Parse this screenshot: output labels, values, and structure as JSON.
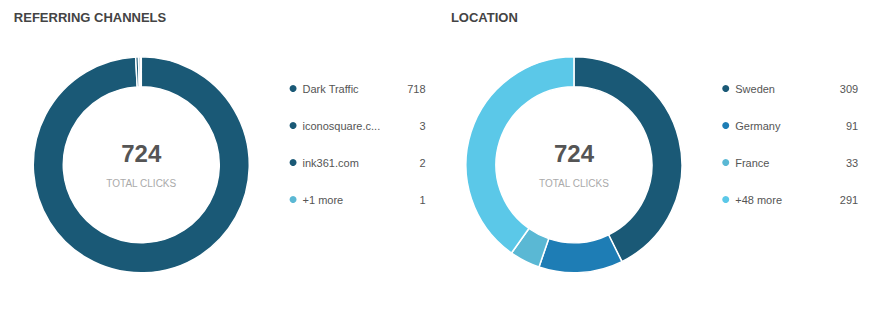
{
  "chart_data": [
    {
      "type": "pie",
      "title": "REFERRING CHANNELS",
      "categories": [
        "Dark Traffic",
        "iconosquare.c...",
        "ink361.com",
        "+1 more"
      ],
      "values": [
        718,
        3,
        2,
        1
      ],
      "colors": [
        "#1a5976",
        "#1a5976",
        "#1a5976",
        "#5bb8d4"
      ],
      "annotations": [
        "724",
        "TOTAL CLICKS"
      ],
      "legend": "right",
      "data_labels": true
    },
    {
      "type": "pie",
      "title": "LOCATION",
      "categories": [
        "Sweden",
        "Germany",
        "France",
        "+48 more"
      ],
      "values": [
        309,
        91,
        33,
        291
      ],
      "colors": [
        "#1a5976",
        "#1e7db5",
        "#5ab8d4",
        "#5bc8e8"
      ],
      "annotations": [
        "724",
        "TOTAL CLICKS"
      ],
      "legend": "right",
      "data_labels": true
    }
  ]
}
